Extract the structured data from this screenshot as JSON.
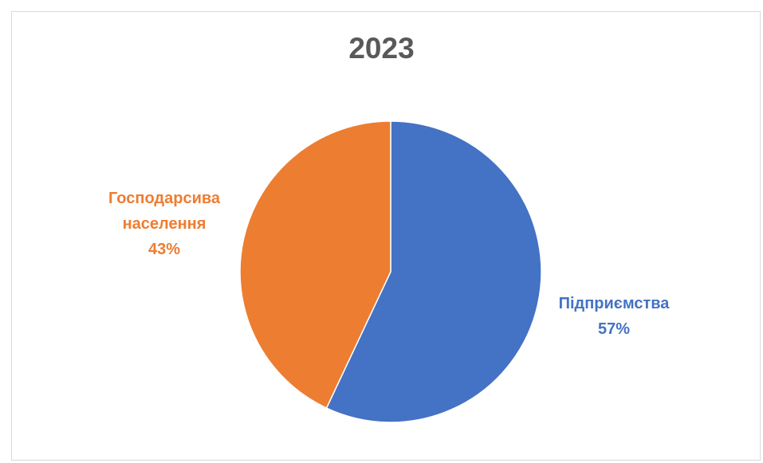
{
  "chart_data": {
    "type": "pie",
    "title": "2023",
    "slices": [
      {
        "label": "Підприємства",
        "value": 57,
        "display": "57%",
        "color": "#4472c4"
      },
      {
        "label": "Господарсива населення",
        "label_lines": [
          "Господарсива",
          "населення"
        ],
        "value": 43,
        "display": "43%",
        "color": "#ed7d31"
      }
    ],
    "start_angle_deg": 0,
    "direction": "clockwise",
    "legend": "none",
    "data_labels": "outside",
    "colors": {
      "text": "#595959",
      "border": "#d9d9d9",
      "background": "#ffffff"
    }
  }
}
